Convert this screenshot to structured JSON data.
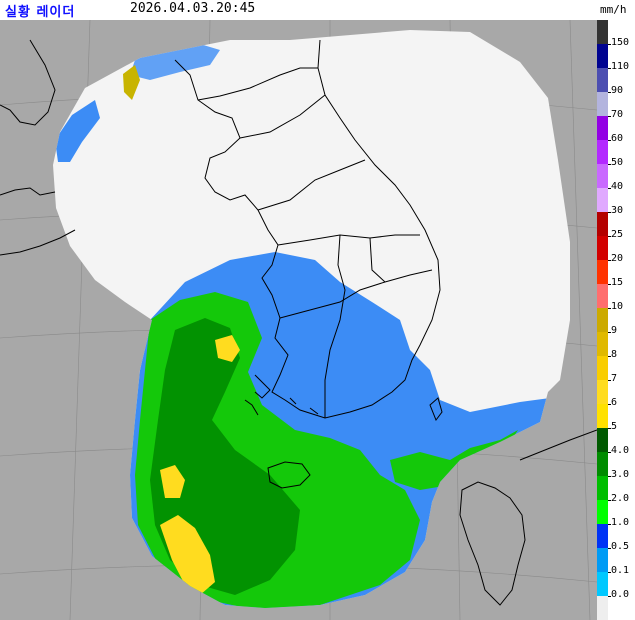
{
  "header": {
    "title": "실황 레이더",
    "timestamp": "2026.04.03.20:45",
    "unit": "mm/h"
  },
  "colors": {
    "title": "#1010ff",
    "background_no_coverage": "#a8a8a8",
    "radar_coverage": "#f4f4f4",
    "border_line": "#000000"
  },
  "legend": {
    "items": [
      {
        "label": "150",
        "color": "#333333"
      },
      {
        "label": "110",
        "color": "#000390"
      },
      {
        "label": "90",
        "color": "#4c4eb1"
      },
      {
        "label": "70",
        "color": "#b3b4de"
      },
      {
        "label": "60",
        "color": "#9300e4"
      },
      {
        "label": "50",
        "color": "#b329ff"
      },
      {
        "label": "40",
        "color": "#c969ff"
      },
      {
        "label": "30",
        "color": "#e0a9ff"
      },
      {
        "label": "25",
        "color": "#b40000"
      },
      {
        "label": "20",
        "color": "#d20000"
      },
      {
        "label": "15",
        "color": "#ff3200"
      },
      {
        "label": "10",
        "color": "#ff6e6e"
      },
      {
        "label": "9",
        "color": "#ccaa00"
      },
      {
        "label": "8",
        "color": "#e0b900"
      },
      {
        "label": "7",
        "color": "#f9cd00"
      },
      {
        "label": "6",
        "color": "#ffdc1f"
      },
      {
        "label": "5",
        "color": "#ffe100"
      },
      {
        "label": "4.0",
        "color": "#005a00"
      },
      {
        "label": "3.0",
        "color": "#008c00"
      },
      {
        "label": "2.0",
        "color": "#00be00"
      },
      {
        "label": "1.0",
        "color": "#00ff00"
      },
      {
        "label": "0.5",
        "color": "#0033f5"
      },
      {
        "label": "0.1",
        "color": "#009bf5"
      },
      {
        "label": "0.0",
        "color": "#00c8ff"
      }
    ],
    "no_rain_color": "#eeeeee"
  }
}
